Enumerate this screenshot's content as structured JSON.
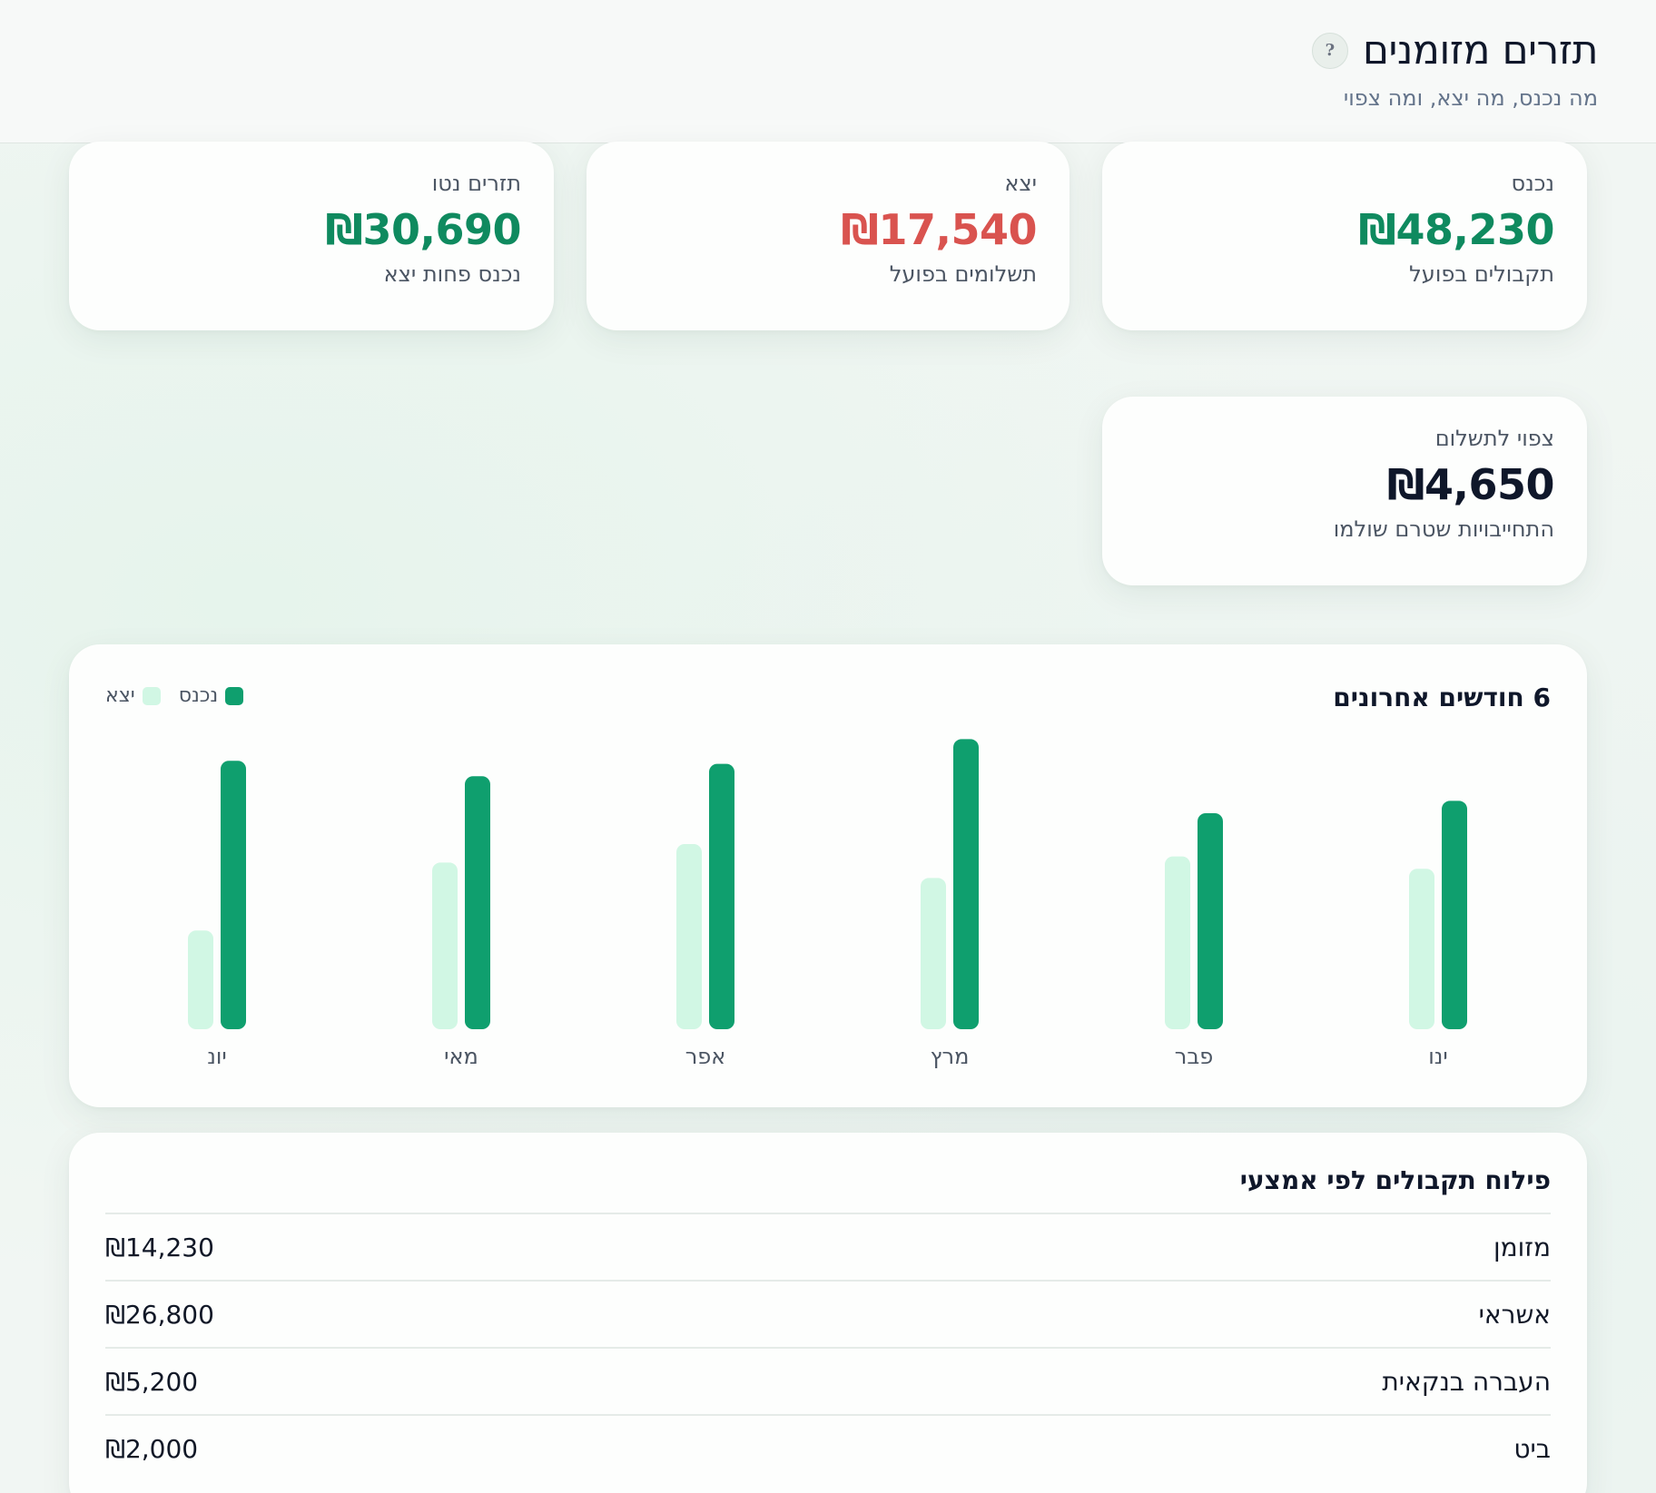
{
  "header": {
    "title": "תזרים מזומנים",
    "help_icon": "help-icon",
    "subtitle": "מה נכנס, מה יצא, ומה צפוי"
  },
  "stats": {
    "income": {
      "label": "נכנס",
      "value": "₪48,230",
      "note": "תקבולים בפועל",
      "color": "#0f8a5f"
    },
    "expense": {
      "label": "יצא",
      "value": "₪17,540",
      "note": "תשלומים בפועל",
      "color": "#d9534f"
    },
    "net": {
      "label": "תזרים נטו",
      "value": "₪30,690",
      "note": "נכנס פחות יצא",
      "color": "#0f8a5f"
    },
    "expected": {
      "label": "צפוי לתשלום",
      "value": "₪4,650",
      "note": "התחייבויות שטרם שולמו",
      "color": "#0f172a"
    }
  },
  "chart": {
    "title": "6 חודשים אחרונים",
    "legend": {
      "income": "נכנס",
      "expense": "יצא"
    },
    "colors": {
      "income": "#0f9f6e",
      "expense": "#d1f7e4"
    }
  },
  "chart_data": {
    "type": "bar",
    "title": "6 חודשים אחרונים",
    "categories": [
      "ינו",
      "פבר",
      "מרץ",
      "אפר",
      "מאי",
      "יונ"
    ],
    "series": [
      {
        "name": "נכנס",
        "values": [
          74,
          70,
          94,
          86,
          82,
          87
        ]
      },
      {
        "name": "יצא",
        "values": [
          52,
          56,
          49,
          60,
          54,
          32
        ]
      }
    ],
    "ylim": [
      0,
      100
    ],
    "grid": false,
    "legend_position": "top-left"
  },
  "breakdown": {
    "title": "פילוח תקבולים לפי אמצעי",
    "rows": [
      {
        "label": "מזומן",
        "amount": "₪14,230"
      },
      {
        "label": "אשראי",
        "amount": "₪26,800"
      },
      {
        "label": "העברה בנקאית",
        "amount": "₪5,200"
      },
      {
        "label": "ביט",
        "amount": "₪2,000"
      }
    ]
  }
}
